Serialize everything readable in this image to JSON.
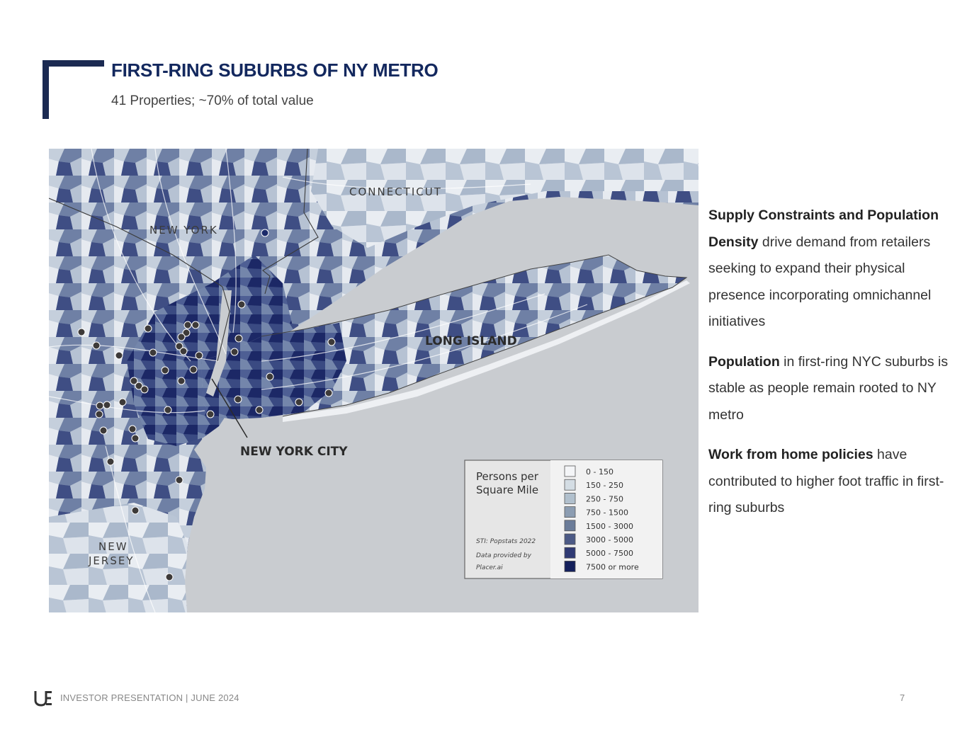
{
  "header": {
    "title": "FIRST-RING SUBURBS OF NY METRO",
    "subtitle": "41 Properties; ~70% of total value"
  },
  "map": {
    "region_labels": {
      "new_york": "NEW YORK",
      "connecticut": "CONNECTICUT",
      "long_island": "LONG ISLAND",
      "new_york_city": "NEW YORK CITY",
      "new_jersey_1": "NEW",
      "new_jersey_2": "JERSEY"
    },
    "legend": {
      "title_line1": "Persons per",
      "title_line2": "Square Mile",
      "source_line1": "STI: Popstats 2022",
      "source_line2": "Data provided by",
      "source_line3": "Placer.ai",
      "items": [
        {
          "label": "0 - 150",
          "color": "#f4f5f7"
        },
        {
          "label": "150 - 250",
          "color": "#d4dde4"
        },
        {
          "label": "250 - 750",
          "color": "#b1c0cd"
        },
        {
          "label": "750 - 1500",
          "color": "#8c9db2"
        },
        {
          "label": "1500 - 3000",
          "color": "#6b7c99"
        },
        {
          "label": "3000 - 5000",
          "color": "#4c5a86"
        },
        {
          "label": "5000 - 7500",
          "color": "#2f3a74"
        },
        {
          "label": "7500 or more",
          "color": "#14205c"
        }
      ]
    },
    "colors": {
      "water": "#c9ccd0",
      "property_marker": "#3d3a39",
      "accent_marker": "#1b2a6a"
    }
  },
  "bullets": [
    {
      "bold": "Supply Constraints and Population Density",
      "text": " drive demand from retailers seeking to expand their physical presence incorporating omnichannel initiatives"
    },
    {
      "bold": "Population",
      "text": " in first-ring NYC suburbs is stable as people remain rooted to NY metro"
    },
    {
      "bold": "Work from home policies",
      "text": " have contributed to higher foot traffic in first-ring suburbs"
    }
  ],
  "footer": {
    "text": "INVESTOR PRESENTATION | JUNE 2024",
    "page": "7"
  }
}
